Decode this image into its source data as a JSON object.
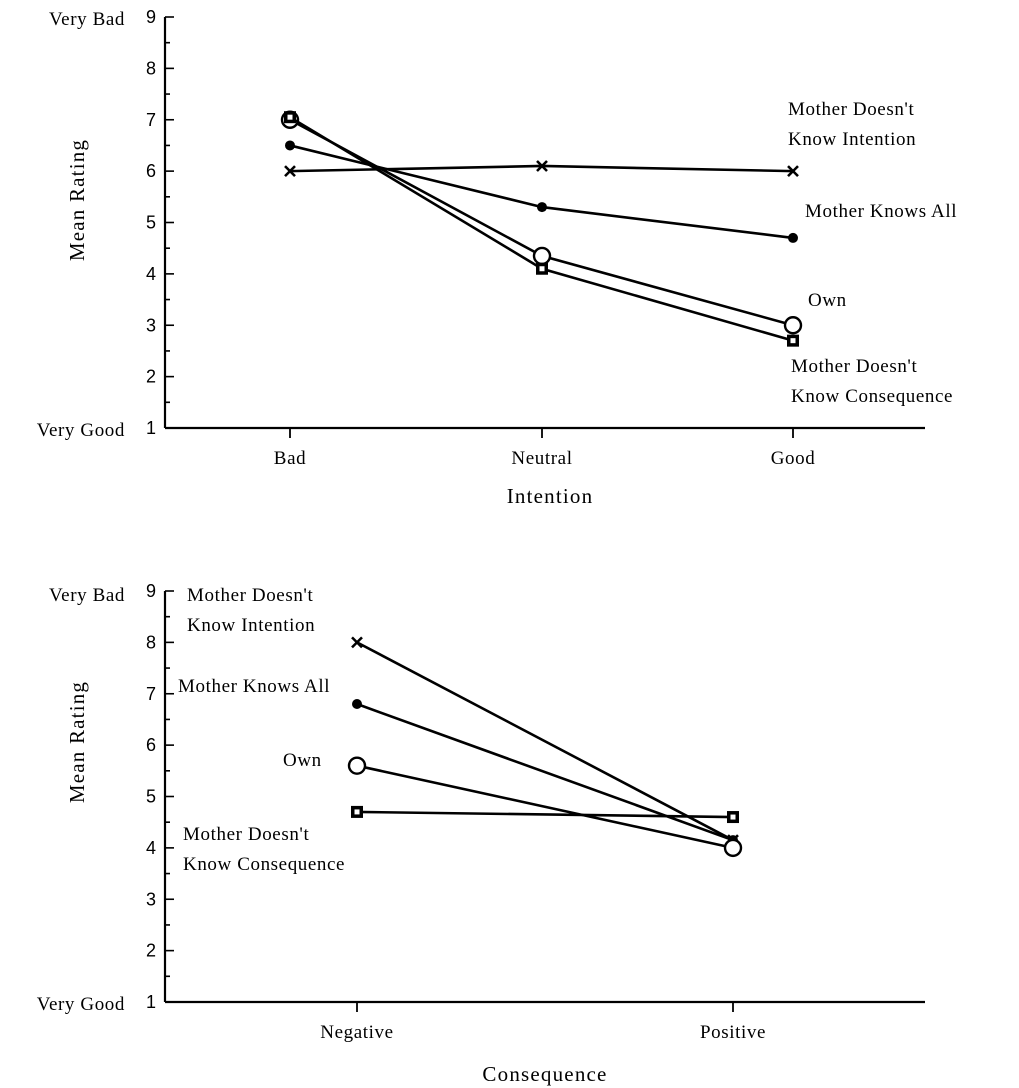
{
  "chart_data": [
    {
      "type": "line",
      "title": "",
      "xlabel": "Intention",
      "ylabel": "Mean Rating",
      "categories": [
        "Bad",
        "Neutral",
        "Good"
      ],
      "ylim": [
        1,
        9
      ],
      "yticks": [
        "1",
        "2",
        "3",
        "4",
        "5",
        "6",
        "7",
        "8",
        "9"
      ],
      "y_end_labels": {
        "top": "Very  Bad",
        "bottom": "Very Good"
      },
      "series": [
        {
          "name_lines": [
            "Mother  Doesn't",
            "Know  Intention"
          ],
          "marker": "x",
          "values": [
            6.0,
            6.1,
            6.0
          ]
        },
        {
          "name_lines": [
            "Mother  Knows  All"
          ],
          "marker": "dot",
          "values": [
            6.5,
            5.3,
            4.7
          ]
        },
        {
          "name_lines": [
            "Own"
          ],
          "marker": "circle",
          "values": [
            7.0,
            4.35,
            3.0
          ]
        },
        {
          "name_lines": [
            "Mother  Doesn't",
            "Know  Consequence"
          ],
          "marker": "square",
          "values": [
            7.05,
            4.1,
            2.7
          ]
        }
      ],
      "grid": false
    },
    {
      "type": "line",
      "title": "",
      "xlabel": "Consequence",
      "ylabel": "Mean Rating",
      "categories": [
        "Negative",
        "Positive"
      ],
      "ylim": [
        1,
        9
      ],
      "yticks": [
        "1",
        "2",
        "3",
        "4",
        "5",
        "6",
        "7",
        "8",
        "9"
      ],
      "y_end_labels": {
        "top": "Very  Bad",
        "bottom": "Very Good"
      },
      "series": [
        {
          "name_lines": [
            "Mother  Doesn't",
            "Know  Intention"
          ],
          "marker": "x",
          "values": [
            8.0,
            4.15
          ]
        },
        {
          "name_lines": [
            "Mother  Knows  All"
          ],
          "marker": "dot",
          "values": [
            6.8,
            4.15
          ]
        },
        {
          "name_lines": [
            "Own"
          ],
          "marker": "circle",
          "values": [
            5.6,
            4.0
          ]
        },
        {
          "name_lines": [
            "Mother  Doesn't",
            "Know  Consequence"
          ],
          "marker": "square",
          "values": [
            4.7,
            4.6
          ]
        }
      ],
      "grid": false
    }
  ]
}
